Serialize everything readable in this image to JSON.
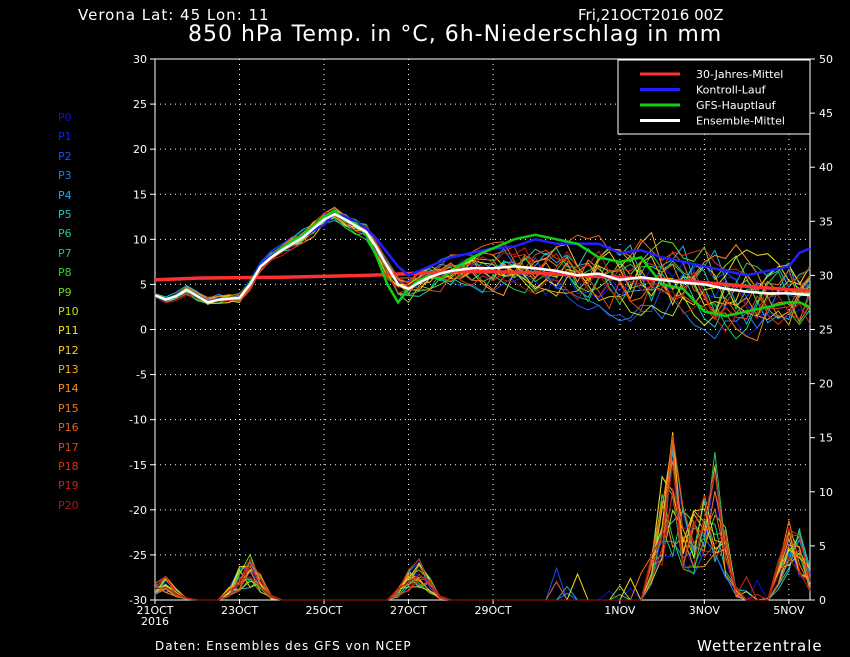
{
  "header": {
    "location": "Verona   Lat: 45 Lon: 11",
    "run": "Fri,21OCT2016 00Z",
    "title": "850 hPa Temp. in °C, 6h-Niederschlag in mm"
  },
  "footer": {
    "source": "Daten: Ensembles des GFS von NCEP",
    "brand": "Wetterzentrale"
  },
  "members": [
    {
      "label": "P0",
      "color": "#1010d8"
    },
    {
      "label": "P1",
      "color": "#1020e0"
    },
    {
      "label": "P2",
      "color": "#1a50f0"
    },
    {
      "label": "P3",
      "color": "#1a80f0"
    },
    {
      "label": "P4",
      "color": "#20a8e8"
    },
    {
      "label": "P5",
      "color": "#20c8c0"
    },
    {
      "label": "P6",
      "color": "#20c880"
    },
    {
      "label": "P7",
      "color": "#20c850"
    },
    {
      "label": "P8",
      "color": "#30d030"
    },
    {
      "label": "P9",
      "color": "#70d820"
    },
    {
      "label": "P10",
      "color": "#b8e020"
    },
    {
      "label": "P11",
      "color": "#f0e020"
    },
    {
      "label": "P12",
      "color": "#f8c820"
    },
    {
      "label": "P13",
      "color": "#f8a820"
    },
    {
      "label": "P14",
      "color": "#f89020"
    },
    {
      "label": "P15",
      "color": "#f07818"
    },
    {
      "label": "P16",
      "color": "#e86018"
    },
    {
      "label": "P17",
      "color": "#e04818"
    },
    {
      "label": "P18",
      "color": "#d83018"
    },
    {
      "label": "P19",
      "color": "#c82018"
    },
    {
      "label": "P20",
      "color": "#b01810"
    }
  ],
  "chart_data": {
    "type": "line",
    "x_labels": [
      "21OCT",
      "23OCT",
      "25OCT",
      "27OCT",
      "29OCT",
      "1NOV",
      "3NOV",
      "5NOV"
    ],
    "x_label_sub": "2016",
    "x_days": [
      0,
      2,
      4,
      6,
      8,
      11,
      13,
      15
    ],
    "x_range_days": [
      0,
      15.5
    ],
    "y_left": {
      "label": "850 hPa Temp. (°C)",
      "range": [
        -30,
        30
      ],
      "ticks": [
        -30,
        -25,
        -20,
        -15,
        -10,
        -5,
        0,
        5,
        10,
        15,
        20,
        25,
        30
      ]
    },
    "y_right": {
      "label": "6h-Niederschlag (mm)",
      "range": [
        0,
        50
      ],
      "ticks": [
        0,
        5,
        10,
        15,
        20,
        25,
        30,
        35,
        40,
        45,
        50
      ]
    },
    "grid": true,
    "legend": {
      "position": "top-right",
      "entries": [
        {
          "name": "30-Jahres-Mittel",
          "color": "#ff3030"
        },
        {
          "name": "Kontroll-Lauf",
          "color": "#2020ff"
        },
        {
          "name": "GFS-Hauptlauf",
          "color": "#10d010"
        },
        {
          "name": "Ensemble-Mittel",
          "color": "#ffffff"
        }
      ]
    },
    "series": [
      {
        "name": "30-Jahres-Mittel",
        "color": "#ff3030",
        "x": [
          0,
          1,
          3,
          5,
          6,
          7,
          8,
          9,
          10,
          11,
          12,
          13,
          14,
          15,
          15.5
        ],
        "values": [
          5.5,
          5.7,
          5.8,
          6.0,
          6.2,
          6.4,
          6.4,
          6.3,
          6.0,
          5.8,
          5.5,
          5.2,
          4.8,
          4.4,
          4.3
        ]
      },
      {
        "name": "Kontroll-Lauf",
        "color": "#2020ff",
        "x": [
          0,
          0.25,
          0.5,
          0.75,
          1,
          1.25,
          1.5,
          1.75,
          2,
          2.25,
          2.5,
          2.75,
          3,
          3.25,
          3.5,
          3.75,
          4,
          4.25,
          4.5,
          4.75,
          5,
          5.25,
          5.5,
          5.75,
          6,
          6.25,
          6.5,
          6.75,
          7,
          7.5,
          8,
          8.5,
          9,
          9.5,
          10,
          10.5,
          11,
          11.5,
          12,
          12.5,
          13,
          13.5,
          14,
          14.5,
          15,
          15.25,
          15.5
        ],
        "values": [
          3.8,
          3.2,
          3.8,
          4.4,
          3.8,
          3.0,
          3.4,
          3.4,
          3.6,
          5.0,
          7.2,
          8.2,
          9.0,
          9.5,
          10.2,
          11.0,
          11.6,
          13.0,
          12.5,
          12.0,
          11.2,
          10.0,
          8.5,
          7.0,
          6.0,
          6.5,
          7.0,
          7.5,
          8.0,
          8.5,
          9.0,
          9.2,
          10.0,
          9.5,
          9.5,
          9.5,
          8.5,
          8.8,
          8.0,
          7.5,
          7.0,
          6.5,
          6.0,
          6.5,
          7.0,
          8.5,
          9.0
        ]
      },
      {
        "name": "GFS-Hauptlauf",
        "color": "#10d010",
        "x": [
          0,
          0.25,
          0.5,
          0.75,
          1,
          1.25,
          1.5,
          1.75,
          2,
          2.25,
          2.5,
          2.75,
          3,
          3.25,
          3.5,
          3.75,
          4,
          4.25,
          4.5,
          4.75,
          5,
          5.25,
          5.5,
          5.75,
          6,
          6.25,
          6.5,
          6.75,
          7,
          7.5,
          8,
          8.5,
          9,
          9.5,
          10,
          10.5,
          11,
          11.5,
          12,
          12.5,
          13,
          13.5,
          14,
          14.5,
          15,
          15.25,
          15.5
        ],
        "values": [
          3.8,
          3.3,
          3.6,
          4.5,
          3.6,
          3.0,
          3.3,
          3.5,
          3.5,
          5.2,
          7.0,
          8.0,
          9.0,
          9.8,
          10.5,
          11.5,
          12.5,
          13.2,
          12.0,
          11.8,
          10.5,
          8.0,
          5.0,
          3.0,
          4.5,
          5.5,
          6.0,
          5.5,
          6.5,
          8.0,
          9.0,
          10.0,
          10.5,
          10.0,
          9.5,
          8.0,
          7.5,
          8.0,
          5.0,
          4.5,
          2.0,
          1.5,
          2.0,
          2.5,
          3.0,
          3.0,
          2.5
        ]
      },
      {
        "name": "Ensemble-Mittel",
        "color": "#ffffff",
        "x": [
          0,
          0.25,
          0.5,
          0.75,
          1,
          1.25,
          1.5,
          1.75,
          2,
          2.25,
          2.5,
          2.75,
          3,
          3.25,
          3.5,
          3.75,
          4,
          4.25,
          4.5,
          4.75,
          5,
          5.25,
          5.5,
          5.75,
          6,
          6.25,
          6.5,
          6.75,
          7,
          7.5,
          8,
          8.5,
          9,
          9.5,
          10,
          10.5,
          11,
          11.5,
          12,
          12.5,
          13,
          13.5,
          14,
          14.5,
          15,
          15.25,
          15.5
        ],
        "values": [
          3.8,
          3.3,
          3.7,
          4.4,
          3.7,
          3.0,
          3.3,
          3.4,
          3.5,
          5.0,
          7.0,
          8.0,
          8.8,
          9.5,
          10.2,
          11.2,
          12.2,
          12.8,
          12.2,
          11.5,
          10.8,
          9.0,
          7.0,
          5.0,
          4.5,
          5.2,
          5.8,
          6.2,
          6.5,
          6.8,
          6.8,
          7.0,
          6.8,
          6.5,
          6.0,
          6.2,
          5.5,
          5.8,
          5.5,
          5.2,
          5.0,
          4.5,
          4.2,
          4.0,
          4.0,
          3.9,
          3.8
        ]
      }
    ],
    "precip_peaks_mm": [
      {
        "day": 0.2,
        "mm": 2.0
      },
      {
        "day": 2.2,
        "mm": 4.0
      },
      {
        "day": 6.2,
        "mm": 3.5
      },
      {
        "day": 12.2,
        "mm": 14.5
      },
      {
        "day": 12.8,
        "mm": 8.0
      },
      {
        "day": 13.2,
        "mm": 12.5
      },
      {
        "day": 15.1,
        "mm": 7.5
      }
    ]
  }
}
